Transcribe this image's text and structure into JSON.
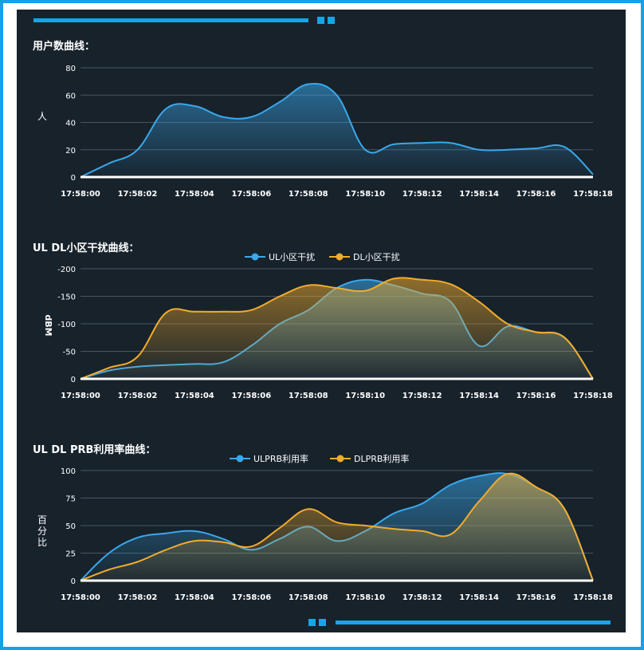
{
  "colors": {
    "accent": "#14a6e6",
    "panel_bg": "#17222b",
    "series_blue": "#3aa8ec",
    "series_orange": "#f2ac2c",
    "grid": "#4a5560",
    "axis": "#ffffff",
    "text": "#ffffff"
  },
  "x_ticks": [
    "17:58:00",
    "17:58:02",
    "17:58:04",
    "17:58:06",
    "17:58:08",
    "17:58:10",
    "17:58:12",
    "17:58:14",
    "17:58:16",
    "17:58:18"
  ],
  "chart_data": [
    {
      "type": "area",
      "title": "用户数曲线：",
      "ylabel": "人",
      "xlabel": "",
      "ylim": [
        0,
        80
      ],
      "y_ticks": [
        0,
        20,
        40,
        60,
        80
      ],
      "y_tick_labels": [
        "0",
        "20",
        "40",
        "60",
        "80"
      ],
      "legend": false,
      "grid": true,
      "series": [
        {
          "color": "#3aa8ec",
          "x": [
            0,
            1,
            2,
            3,
            4,
            5,
            6,
            7,
            8,
            9,
            10,
            11,
            12,
            13,
            14,
            15,
            16,
            17,
            18
          ],
          "values": [
            0,
            10,
            20,
            50,
            52,
            44,
            44,
            55,
            68,
            60,
            20,
            24,
            25,
            25,
            20,
            20,
            21,
            22,
            2
          ]
        }
      ]
    },
    {
      "type": "area",
      "title": "UL DL小区干扰曲线：",
      "ylabel": "dBM",
      "xlabel": "",
      "ylim": [
        0,
        -200
      ],
      "y_ticks": [
        0,
        -50,
        -100,
        -150,
        -200
      ],
      "y_tick_labels": [
        "0",
        "-50",
        "-100",
        "-150",
        "-200"
      ],
      "legend": true,
      "grid": true,
      "series": [
        {
          "name": "UL小区干扰",
          "color": "#3aa8ec",
          "x": [
            0,
            1,
            2,
            3,
            4,
            5,
            6,
            7,
            8,
            9,
            10,
            11,
            12,
            13,
            14,
            15,
            16,
            17,
            18
          ],
          "values": [
            0,
            -15,
            -22,
            -25,
            -27,
            -30,
            -60,
            -100,
            -125,
            -165,
            -180,
            -170,
            -155,
            -140,
            -60,
            -95,
            -85,
            -75,
            0
          ]
        },
        {
          "name": "DL小区干扰",
          "color": "#f2ac2c",
          "x": [
            0,
            1,
            2,
            3,
            4,
            5,
            6,
            7,
            8,
            9,
            10,
            11,
            12,
            13,
            14,
            15,
            16,
            17,
            18
          ],
          "values": [
            0,
            -20,
            -40,
            -120,
            -122,
            -122,
            -125,
            -150,
            -170,
            -165,
            -160,
            -182,
            -180,
            -172,
            -140,
            -100,
            -85,
            -75,
            0
          ]
        }
      ]
    },
    {
      "type": "area",
      "title": "UL DL PRB利用率曲线：",
      "ylabel": "百分比",
      "xlabel": "",
      "ylim": [
        0,
        100
      ],
      "y_ticks": [
        0,
        25,
        50,
        75,
        100
      ],
      "y_tick_labels": [
        "0",
        "25",
        "50",
        "75",
        "100"
      ],
      "legend": true,
      "grid": true,
      "series": [
        {
          "name": "ULPRB利用率",
          "color": "#3aa8ec",
          "x": [
            0,
            1,
            2,
            3,
            4,
            5,
            6,
            7,
            8,
            9,
            10,
            11,
            12,
            13,
            14,
            15,
            16,
            17,
            18
          ],
          "values": [
            0,
            25,
            39,
            43,
            45,
            38,
            28,
            38,
            49,
            36,
            45,
            61,
            70,
            87,
            95,
            97,
            85,
            65,
            0
          ]
        },
        {
          "name": "DLPRB利用率",
          "color": "#f2ac2c",
          "x": [
            0,
            1,
            2,
            3,
            4,
            5,
            6,
            7,
            8,
            9,
            10,
            11,
            12,
            13,
            14,
            15,
            16,
            17,
            18
          ],
          "values": [
            0,
            10,
            17,
            28,
            36,
            35,
            31,
            48,
            65,
            53,
            50,
            47,
            45,
            42,
            72,
            97,
            85,
            65,
            0
          ]
        }
      ]
    }
  ]
}
